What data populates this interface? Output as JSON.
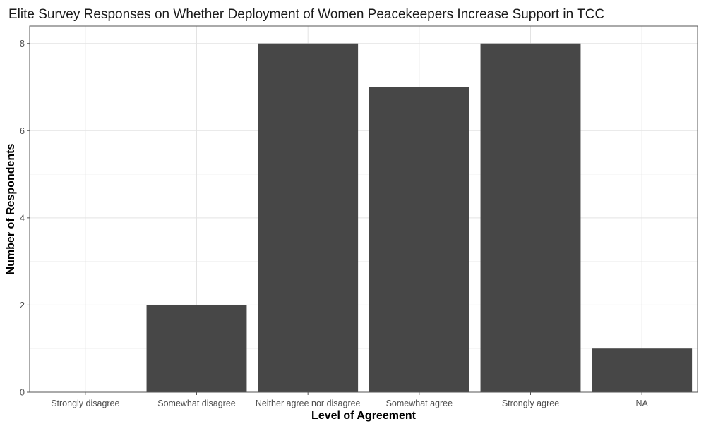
{
  "chart_data": {
    "type": "bar",
    "title": "Elite Survey Responses on Whether Deployment of Women Peacekeepers Increase Support in TCC",
    "xlabel": "Level of Agreement",
    "ylabel": "Number of Respondents",
    "categories": [
      "Strongly disagree",
      "Somewhat disagree",
      "Neither agree nor disagree",
      "Somewhat agree",
      "Strongly agree",
      "NA"
    ],
    "values": [
      0,
      2,
      8,
      7,
      8,
      1
    ],
    "yticks": [
      0,
      2,
      4,
      6,
      8
    ],
    "ylim": [
      0,
      8.4
    ],
    "grid": true,
    "bar_color": "#474747",
    "legend": "none"
  }
}
